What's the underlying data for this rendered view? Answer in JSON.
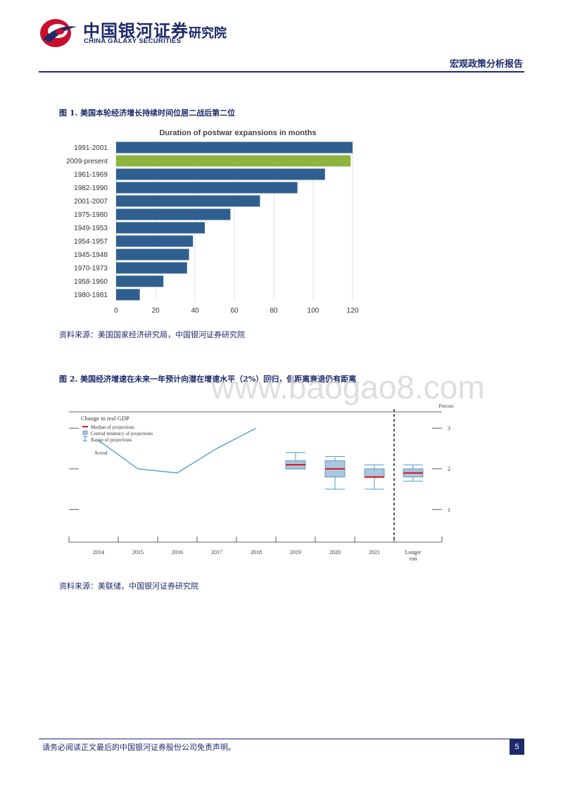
{
  "header": {
    "logo_cn": "中国银河证券",
    "logo_inst": "研究院",
    "logo_en": "CHINA GALAXY SECURITIES",
    "report_type": "宏观政策分析报告"
  },
  "figures": [
    {
      "title": "图 1. 美国本轮经济增长持续时间位居二战后第二位",
      "source": "资料来源：美国国家经济研究局，中国银河证券研究院"
    },
    {
      "title": "图 2. 美国经济增速在未来一年预计向潜在增速水平（2%）回归，但距离衰退仍有距离",
      "source": "资料来源：美联储，中国银河证券研究院"
    }
  ],
  "watermark": "www.baogao8.com",
  "footer": {
    "disclaimer": "请务必阅读正文最后的中国银河证券股份公司免责声明。",
    "page": "5"
  },
  "colors": {
    "brand": "#1d2a6b",
    "bar": "#2f5f8e",
    "highlight_bar": "#8db43c",
    "line": "#2f95c8",
    "median": "#d61f26",
    "tendency": "#a9c7e0"
  },
  "chart_data": [
    {
      "type": "bar",
      "orientation": "horizontal",
      "title": "Duration of postwar expansions in months",
      "categories": [
        "1991-2001",
        "2009-present",
        "1961-1969",
        "1982-1990",
        "2001-2007",
        "1975-1980",
        "1949-1953",
        "1954-1957",
        "1945-1948",
        "1970-1973",
        "1958-1960",
        "1980-1981"
      ],
      "values": [
        120,
        119,
        106,
        92,
        73,
        58,
        45,
        39,
        37,
        36,
        24,
        12
      ],
      "highlight": "2009-present",
      "xlim": [
        0,
        120
      ],
      "xticks": [
        0,
        20,
        40,
        60,
        80,
        100,
        120
      ],
      "grid": true
    },
    {
      "type": "line",
      "title": "Change in real GDP",
      "unit_label": "Percent",
      "legend": [
        "Median of projections",
        "Central tendency of projections",
        "Range of projections"
      ],
      "legend_position": "top-left",
      "categories": [
        "2014",
        "2015",
        "2016",
        "2017",
        "2018",
        "2019",
        "2020",
        "2021",
        "Longer run"
      ],
      "yticks": [
        1,
        2,
        3
      ],
      "ylim": [
        0.2,
        3.4
      ],
      "series": [
        {
          "name": "Actual",
          "x": [
            "2014",
            "2015",
            "2016",
            "2017",
            "2018"
          ],
          "values": [
            2.7,
            2.0,
            1.9,
            2.5,
            3.0
          ]
        }
      ],
      "projections": [
        {
          "period": "2019",
          "median": 2.1,
          "central_low": 2.0,
          "central_high": 2.2,
          "range_low": 2.0,
          "range_high": 2.4
        },
        {
          "period": "2020",
          "median": 2.0,
          "central_low": 1.8,
          "central_high": 2.2,
          "range_low": 1.5,
          "range_high": 2.3
        },
        {
          "period": "2021",
          "median": 1.8,
          "central_low": 1.8,
          "central_high": 2.0,
          "range_low": 1.5,
          "range_high": 2.1
        },
        {
          "period": "Longer run",
          "median": 1.9,
          "central_low": 1.8,
          "central_high": 2.0,
          "range_low": 1.7,
          "range_high": 2.1
        }
      ]
    }
  ]
}
